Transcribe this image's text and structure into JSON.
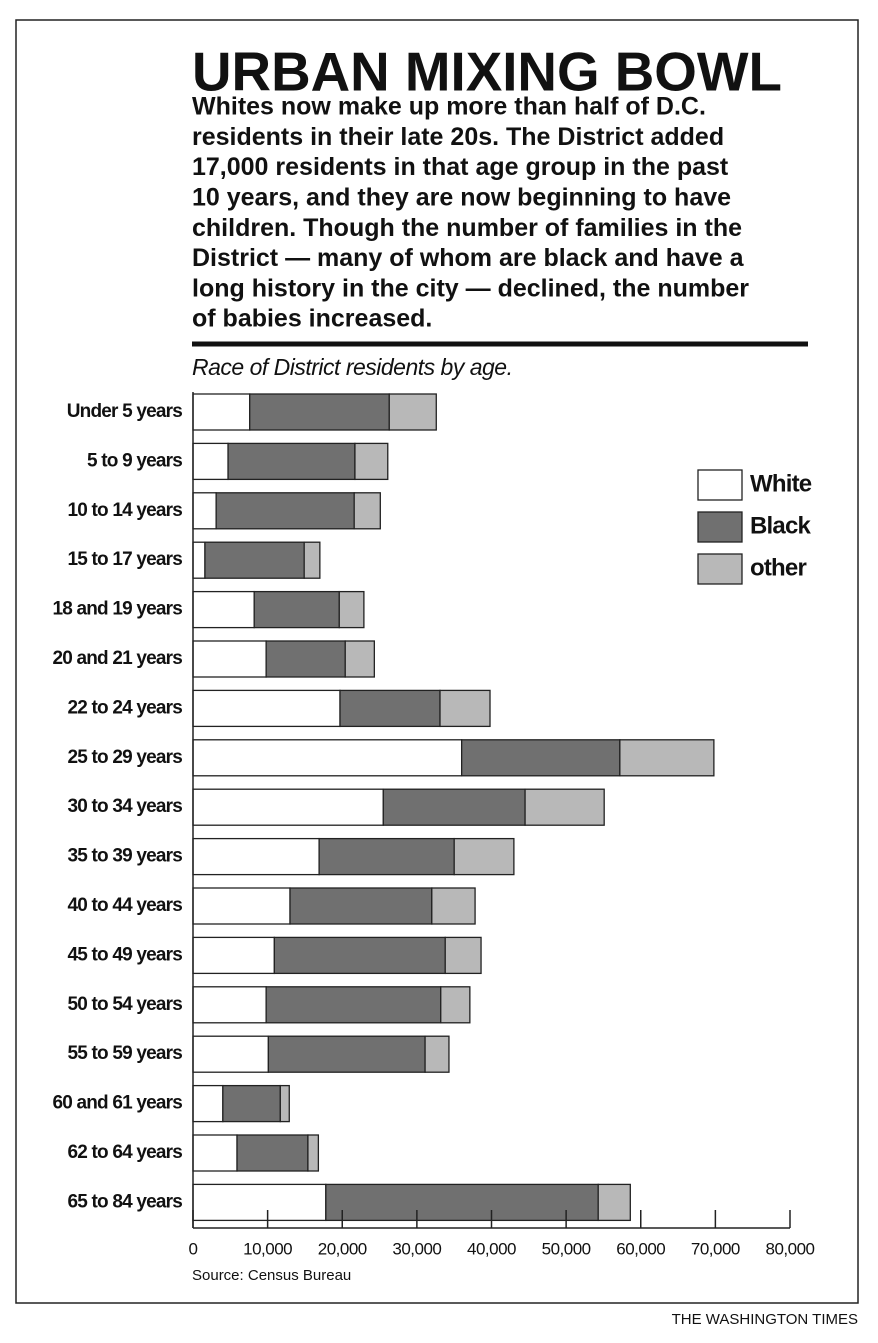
{
  "chart_data": {
    "type": "stacked-barh",
    "title": "URBAN MIXING BOWL",
    "description": [
      "Whites now make up more than half of D.C.",
      "residents in their late 20s. The District added",
      "17,000 residents in that age group in the past",
      "10 years, and they are now beginning to have",
      "children. Though the number of families in the",
      "District — many of whom are black and have a",
      "long history in the city — declined, the number",
      "of babies increased."
    ],
    "subtitle": "Race of District residents by age.",
    "categories": [
      "Under 5 years",
      "5 to 9 years",
      "10 to 14 years",
      "15 to 17 years",
      "18 and 19 years",
      "20 and 21 years",
      "22 to 24 years",
      "25 to 29 years",
      "30 to 34 years",
      "35 to 39 years",
      "40 to 44 years",
      "45 to 49 years",
      "50 to 54 years",
      "55 to 59 years",
      "60 and 61 years",
      "62 to 64 years",
      "65 to 84 years"
    ],
    "series": [
      {
        "name": "White",
        "color": "#ffffff",
        "values": [
          7600,
          4700,
          3100,
          1600,
          8200,
          9800,
          19700,
          36000,
          25500,
          16900,
          13000,
          10900,
          9800,
          10100,
          4000,
          5900,
          17800
        ]
      },
      {
        "name": "Black",
        "color": "#707070",
        "values": [
          18700,
          17000,
          18500,
          13300,
          11400,
          10600,
          13400,
          21200,
          19000,
          18100,
          19000,
          22900,
          23400,
          21000,
          7700,
          9500,
          36500
        ]
      },
      {
        "name": "other",
        "color": "#b8b8b8",
        "values": [
          6300,
          4400,
          3500,
          2100,
          3300,
          3900,
          6700,
          12600,
          10600,
          8000,
          5800,
          4800,
          3900,
          3200,
          1200,
          1400,
          4300
        ]
      }
    ],
    "xlim": [
      0,
      80000
    ],
    "xticks": [
      0,
      {
        "value": 10000,
        "label": "10,000"
      },
      {
        "value": 20000,
        "label": "20,000"
      },
      {
        "value": 30000,
        "label": "30,000"
      },
      {
        "value": 40000,
        "label": "40,000"
      },
      {
        "value": 50000,
        "label": "50,000"
      },
      {
        "value": 60000,
        "label": "60,000"
      },
      {
        "value": 70000,
        "label": "70,000"
      },
      {
        "value": 80000,
        "label": "80,000"
      }
    ],
    "source": "Source: Census Bureau",
    "credit": "THE WASHINGTON TIMES"
  }
}
